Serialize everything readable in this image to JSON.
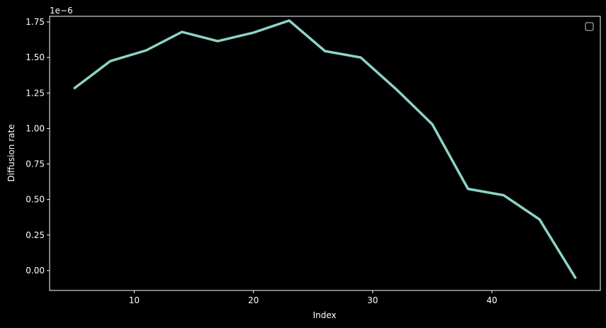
{
  "chart_data": {
    "type": "line",
    "title": "",
    "xlabel": "Index",
    "ylabel": "Diffusion rate",
    "y_offset_text": "1e−6",
    "x_ticks": [
      10,
      20,
      30,
      40
    ],
    "y_ticks": [
      "0.00",
      "0.25",
      "0.50",
      "0.75",
      "1.00",
      "1.25",
      "1.50",
      "1.75"
    ],
    "xlim": [
      2.9,
      49.1
    ],
    "ylim": [
      -0.14,
      1.79
    ],
    "grid": false,
    "legend": "top-right (empty)",
    "series": [
      {
        "color": "#8dd3c7",
        "x": [
          5,
          8,
          11,
          14,
          17,
          20,
          23,
          26,
          29,
          32,
          35,
          38,
          41,
          44,
          47
        ],
        "y": [
          1.285,
          1.475,
          1.55,
          1.68,
          1.615,
          1.675,
          1.76,
          1.545,
          1.5,
          1.275,
          1.03,
          0.575,
          0.53,
          0.36,
          -0.05
        ]
      }
    ]
  }
}
